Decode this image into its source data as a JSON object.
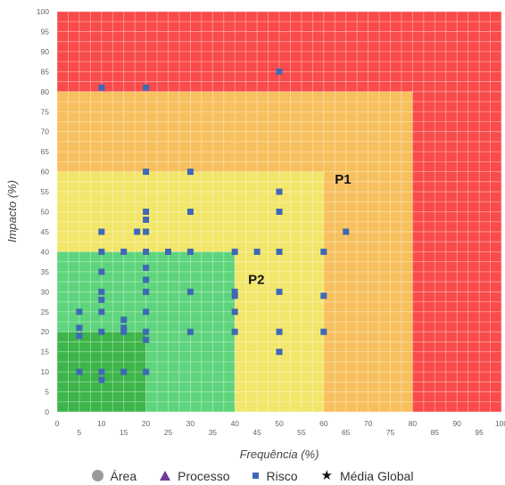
{
  "chart_data": {
    "type": "scatter",
    "title": "",
    "xlabel": "Frequência (%)",
    "ylabel": "Impacto (%)",
    "xlim": [
      0,
      100
    ],
    "ylim": [
      0,
      100
    ],
    "x_ticks": [
      "0",
      "5",
      "10",
      "15",
      "20",
      "25",
      "30",
      "35",
      "40",
      "45",
      "50",
      "55",
      "60",
      "65",
      "70",
      "75",
      "80",
      "85",
      "90",
      "95",
      "100"
    ],
    "y_ticks": [
      "0",
      "5",
      "10",
      "15",
      "20",
      "25",
      "30",
      "35",
      "40",
      "45",
      "50",
      "55",
      "60",
      "65",
      "70",
      "75",
      "80",
      "85",
      "90",
      "95",
      "100"
    ],
    "grid": true,
    "zones": [
      {
        "x_max": 100,
        "y_max": 100,
        "color": "#f94b4b"
      },
      {
        "x_max": 80,
        "y_max": 80,
        "color": "#f7c05e"
      },
      {
        "x_max": 60,
        "y_max": 60,
        "color": "#f2e66b"
      },
      {
        "x_max": 40,
        "y_max": 40,
        "color": "#5ed47c"
      },
      {
        "x_max": 20,
        "y_max": 20,
        "color": "#3db54a"
      }
    ],
    "annotations": [
      {
        "text": "P1",
        "x": 62.5,
        "y": 57
      },
      {
        "text": "P2",
        "x": 43,
        "y": 32
      }
    ],
    "legend": {
      "placement": "bottom",
      "items": [
        {
          "label": "Área",
          "symbol": "circle",
          "color": "#9a9a9a"
        },
        {
          "label": "Processo",
          "symbol": "triangle",
          "color": "#6a3d9a"
        },
        {
          "label": "Risco",
          "symbol": "square",
          "color": "#3f69b5"
        },
        {
          "label": "Média Global",
          "symbol": "star",
          "color": "#111111"
        }
      ]
    },
    "series": [
      {
        "name": "Risco",
        "marker": "square",
        "color": "#3f69b5",
        "points": [
          [
            10,
            81
          ],
          [
            20,
            81
          ],
          [
            50,
            85
          ],
          [
            20,
            60
          ],
          [
            30,
            60
          ],
          [
            50,
            55
          ],
          [
            20,
            50
          ],
          [
            30,
            50
          ],
          [
            50,
            50
          ],
          [
            20,
            48
          ],
          [
            10,
            45
          ],
          [
            18,
            45
          ],
          [
            20,
            45
          ],
          [
            65,
            45
          ],
          [
            10,
            40
          ],
          [
            15,
            40
          ],
          [
            20,
            40
          ],
          [
            25,
            40
          ],
          [
            30,
            40
          ],
          [
            40,
            40
          ],
          [
            45,
            40
          ],
          [
            50,
            40
          ],
          [
            60,
            40
          ],
          [
            20,
            36
          ],
          [
            10,
            35
          ],
          [
            20,
            33
          ],
          [
            10,
            30
          ],
          [
            20,
            30
          ],
          [
            30,
            30
          ],
          [
            40,
            30
          ],
          [
            50,
            30
          ],
          [
            40,
            29
          ],
          [
            60,
            29
          ],
          [
            10,
            28
          ],
          [
            5,
            25
          ],
          [
            10,
            25
          ],
          [
            20,
            25
          ],
          [
            40,
            25
          ],
          [
            15,
            23
          ],
          [
            15,
            21
          ],
          [
            5,
            21
          ],
          [
            10,
            20
          ],
          [
            15,
            20
          ],
          [
            20,
            20
          ],
          [
            30,
            20
          ],
          [
            40,
            20
          ],
          [
            50,
            20
          ],
          [
            60,
            20
          ],
          [
            5,
            19
          ],
          [
            20,
            18
          ],
          [
            50,
            15
          ],
          [
            5,
            10
          ],
          [
            10,
            10
          ],
          [
            15,
            10
          ],
          [
            20,
            10
          ],
          [
            10,
            8
          ]
        ]
      }
    ]
  }
}
